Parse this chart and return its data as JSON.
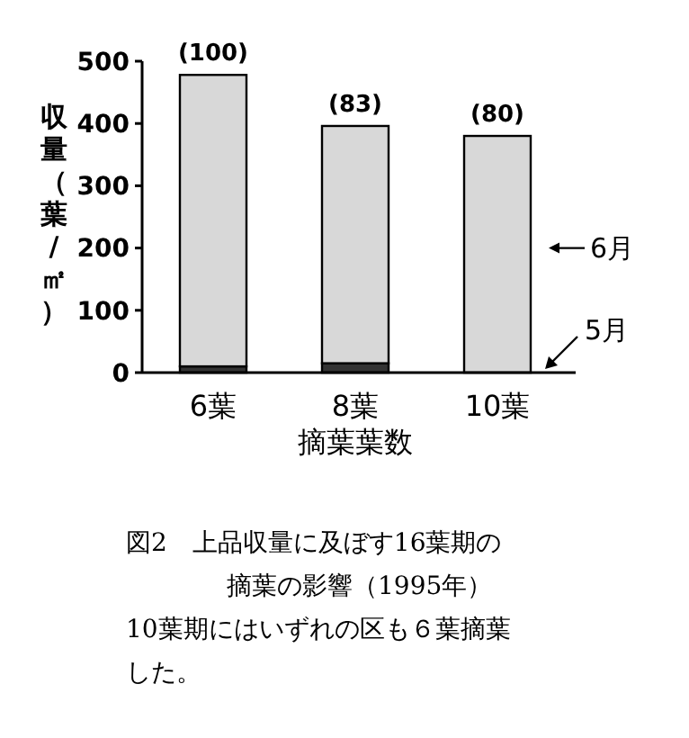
{
  "chart_data": {
    "type": "bar",
    "stacked": true,
    "title": "図2　上品収量に及ぼす16葉期の摘葉の影響（1995年）",
    "xlabel": "摘葉葉数",
    "ylabel": "収量（葉/㎡）",
    "categories": [
      "6葉",
      "8葉",
      "10葉"
    ],
    "series": [
      {
        "name": "5月",
        "color": "#333333",
        "values": [
          10,
          15,
          null
        ]
      },
      {
        "name": "6月",
        "color": "#d8d8d8",
        "values": [
          468,
          381,
          380
        ]
      }
    ],
    "ylim": [
      0,
      500
    ],
    "yticks": [
      0,
      100,
      200,
      300,
      400,
      500
    ],
    "legend": "right",
    "annotations": [
      {
        "text": "(100)",
        "x": "6葉",
        "y": 478
      },
      {
        "text": "(83)",
        "x": "8葉",
        "y": 396
      },
      {
        "text": "(80)",
        "x": "10葉",
        "y": 380
      },
      "10葉期にはいずれの区も６葉摘葉した。"
    ]
  }
}
